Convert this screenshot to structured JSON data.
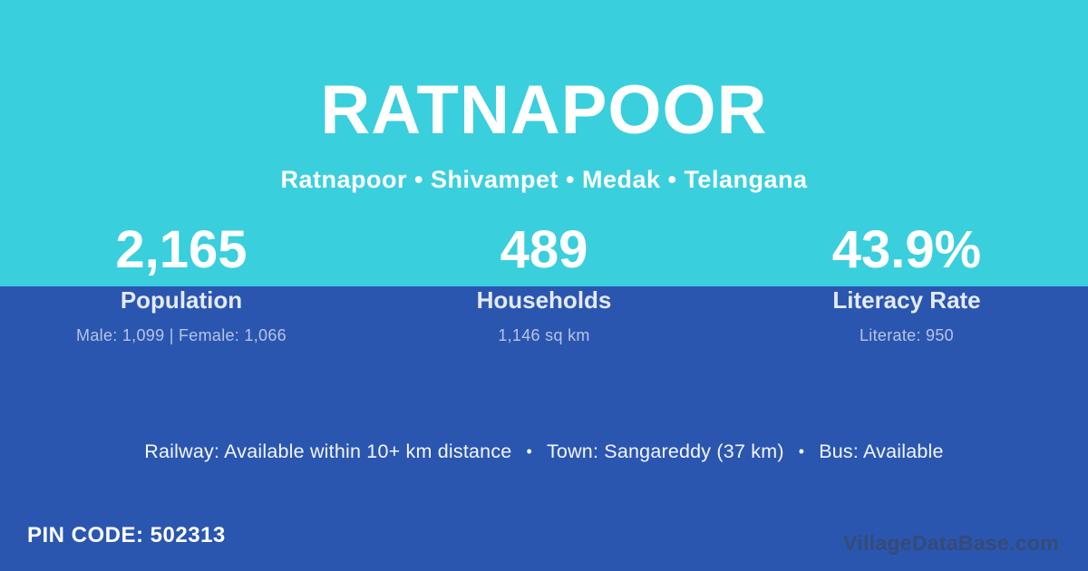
{
  "colors": {
    "top_band_bg": "#3ACFDD",
    "bottom_bg": "#2A56B0",
    "primary_text": "#FFFFFF",
    "label_text": "#E4EAF8",
    "detail_text": "#B7C4E6",
    "watermark_text": "#3C4652"
  },
  "header": {
    "title": "RATNAPOOR",
    "breadcrumb": "Ratnapoor • Shivampet • Medak • Telangana"
  },
  "stats": [
    {
      "value": "2,165",
      "label": "Population",
      "detail": "Male: 1,099 | Female: 1,066"
    },
    {
      "value": "489",
      "label": "Households",
      "detail": "1,146 sq km"
    },
    {
      "value": "43.9%",
      "label": "Literacy Rate",
      "detail": "Literate: 950"
    }
  ],
  "facilities": {
    "railway": "Railway: Available within 10+ km distance",
    "town": "Town: Sangareddy (37 km)",
    "bus": "Bus: Available",
    "separator": "•"
  },
  "footer": {
    "pin_code": "PIN CODE: 502313",
    "watermark": "VillageDataBase.com"
  }
}
